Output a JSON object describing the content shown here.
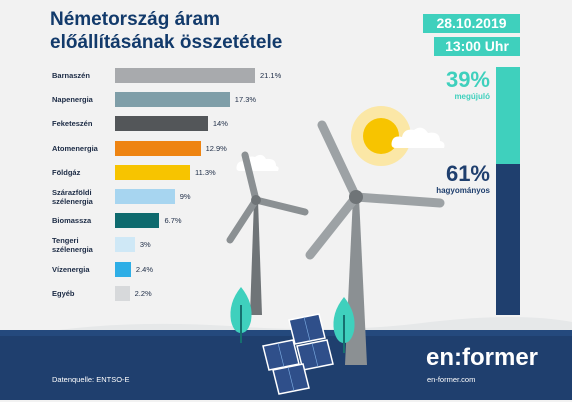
{
  "header": {
    "title_line1": "Németország áram",
    "title_line2": "előállításának összetétele",
    "date": "28.10.2019",
    "time": "13:00 Uhr"
  },
  "summary": {
    "renewable_value": "39%",
    "renewable_label": "megújuló",
    "conventional_value": "61%",
    "conventional_label": "hagyományos",
    "renewable_fraction": 0.39,
    "renewable_color": "#3fd0bd",
    "conventional_color": "#1f3f6e"
  },
  "chart_data": {
    "type": "bar",
    "orientation": "horizontal",
    "categories": [
      [
        "Barnaszén"
      ],
      [
        "Napenergia"
      ],
      [
        "Feketeszén"
      ],
      [
        "Atomenergia"
      ],
      [
        "Földgáz"
      ],
      [
        "Szárazföldi",
        "szélenergia"
      ],
      [
        "Biomassza"
      ],
      [
        "Tengeri",
        "szélenergia"
      ],
      [
        "Vízenergia"
      ],
      [
        "Egyéb"
      ]
    ],
    "values": [
      21.1,
      17.3,
      14,
      12.9,
      11.3,
      9,
      6.7,
      3,
      2.4,
      2.2
    ],
    "value_labels": [
      "21.1%",
      "17.3%",
      "14%",
      "12.9%",
      "11.3%",
      "9%",
      "6.7%",
      "3%",
      "2.4%",
      "2.2%"
    ],
    "colors": [
      "#a8aaad",
      "#7f9ea8",
      "#535659",
      "#ee8412",
      "#f7c400",
      "#a7d5f0",
      "#0e6a6e",
      "#cfe8f6",
      "#2eaee6",
      "#d7d9db"
    ],
    "xlim": [
      0,
      21.1
    ]
  },
  "footer": {
    "source": "Datenquelle: ENTSO-E",
    "brand": "en:former",
    "url": "en-former.com"
  },
  "icons": [
    "sun-icon",
    "cloud-icon",
    "wind-turbine-icon",
    "solar-panel-icon",
    "tree-icon"
  ]
}
